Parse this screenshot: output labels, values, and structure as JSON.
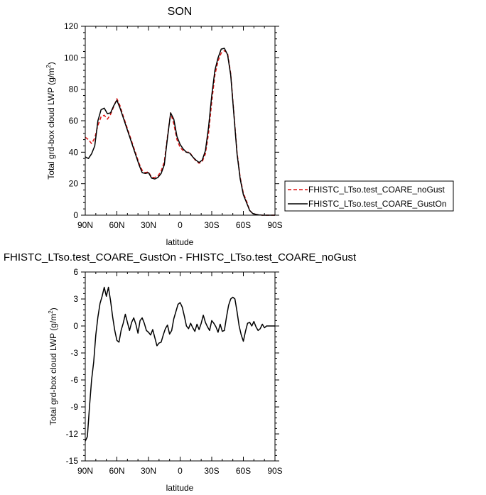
{
  "chart_data": [
    {
      "type": "line",
      "title": "SON",
      "xlabel": "latitude",
      "ylabel": "Total grd-box cloud LWP (g/m",
      "ylabel_sup": "2",
      "ylabel_close": ")",
      "xlim": [
        90,
        -90
      ],
      "ylim": [
        0,
        120
      ],
      "xticks": [
        90,
        60,
        30,
        0,
        -30,
        -60,
        -90
      ],
      "xtick_labels": [
        "90N",
        "60N",
        "30N",
        "0",
        "30S",
        "60S",
        "90S"
      ],
      "yticks": [
        0,
        20,
        40,
        60,
        80,
        100,
        120
      ],
      "ytick_labels": [
        "0",
        "20",
        "40",
        "60",
        "80",
        "100",
        "120"
      ],
      "legend": {
        "placement": "right",
        "border": true
      },
      "x": [
        90,
        87,
        84,
        81,
        78,
        75,
        72,
        69,
        66,
        63,
        60,
        57,
        54,
        51,
        48,
        45,
        42,
        39,
        36,
        33,
        30,
        27,
        24,
        21,
        18,
        15,
        12,
        9,
        6,
        3,
        0,
        -3,
        -6,
        -9,
        -12,
        -15,
        -18,
        -21,
        -24,
        -27,
        -30,
        -33,
        -36,
        -39,
        -42,
        -45,
        -48,
        -51,
        -54,
        -57,
        -60,
        -63,
        -66,
        -69,
        -72,
        -75,
        -78,
        -81,
        -84,
        -87,
        -90
      ],
      "series": [
        {
          "name": "FHISTC_LTso.test_COARE_noGust",
          "color": "#dd1111",
          "dash": "dashed",
          "values": [
            49.5,
            48,
            45.5,
            49,
            57,
            62.5,
            63.5,
            61,
            64,
            69,
            74,
            69.5,
            63,
            57,
            51,
            45,
            39,
            33,
            28.5,
            27,
            27.5,
            24,
            24,
            25,
            28,
            34,
            50,
            65,
            58,
            48,
            43,
            41,
            40,
            40,
            37,
            34.5,
            33,
            34,
            39,
            52,
            72,
            89,
            98,
            103,
            104.5,
            103,
            90,
            65,
            40,
            24,
            14,
            9,
            3,
            1,
            0.5,
            0.2,
            0,
            0,
            0,
            0,
            0
          ]
        },
        {
          "name": "FHISTC_LTso.test_COARE_GustOn",
          "color": "#000000",
          "dash": "solid",
          "values": [
            37,
            36,
            39,
            44,
            60,
            67,
            68,
            64.5,
            65,
            69.5,
            73,
            68,
            62,
            56,
            50,
            44,
            38,
            32,
            27,
            26.5,
            27,
            23.5,
            23,
            24,
            26.5,
            32,
            49,
            65,
            61,
            50,
            45,
            42,
            40,
            39.5,
            37,
            35,
            33.5,
            35,
            41,
            56,
            76,
            92,
            100,
            105.5,
            106,
            102,
            89,
            64,
            39,
            23,
            13,
            8,
            3,
            1,
            0.5,
            0.2,
            0,
            0,
            0,
            0,
            0
          ]
        }
      ]
    },
    {
      "type": "line",
      "title": "FHISTC_LTso.test_COARE_GustOn - FHISTC_LTso.test_COARE_noGust",
      "xlabel": "latitude",
      "ylabel": "Total grd-box cloud LWP (g/m",
      "ylabel_sup": "2",
      "ylabel_close": ")",
      "xlim": [
        90,
        -90
      ],
      "ylim": [
        -15,
        6
      ],
      "xticks": [
        90,
        60,
        30,
        0,
        -30,
        -60,
        -90
      ],
      "xtick_labels": [
        "90N",
        "60N",
        "30N",
        "0",
        "30S",
        "60S",
        "90S"
      ],
      "yticks": [
        -15,
        -12,
        -9,
        -6,
        -3,
        0,
        3,
        6
      ],
      "ytick_labels": [
        "-15",
        "-12",
        "-9",
        "-6",
        "-3",
        "0",
        "3",
        "6"
      ],
      "x": [
        90,
        88,
        86,
        84,
        82,
        80,
        78,
        76,
        74,
        72,
        70,
        68,
        66,
        64,
        62,
        60,
        58,
        56,
        54,
        52,
        50,
        48,
        46,
        44,
        42,
        40,
        38,
        36,
        34,
        32,
        30,
        28,
        26,
        24,
        22,
        20,
        18,
        16,
        14,
        12,
        10,
        8,
        6,
        4,
        2,
        0,
        -2,
        -4,
        -6,
        -8,
        -10,
        -12,
        -14,
        -16,
        -18,
        -20,
        -22,
        -24,
        -26,
        -28,
        -30,
        -32,
        -34,
        -36,
        -38,
        -40,
        -42,
        -44,
        -46,
        -48,
        -50,
        -52,
        -54,
        -56,
        -58,
        -60,
        -62,
        -64,
        -66,
        -68,
        -70,
        -72,
        -74,
        -76,
        -78,
        -80,
        -82,
        -84,
        -86,
        -88,
        -90
      ],
      "series": [
        {
          "name": "",
          "color": "#000000",
          "dash": "solid",
          "values": [
            -12.8,
            -12.3,
            -9,
            -6,
            -4,
            -1,
            1,
            2.5,
            3.3,
            4.3,
            3.3,
            4.3,
            2.8,
            1,
            -0.5,
            -1.6,
            -1.8,
            -0.5,
            0.3,
            1.3,
            0.4,
            -0.5,
            0.4,
            0.9,
            0.2,
            -0.8,
            0.6,
            0.9,
            0.3,
            -0.5,
            -0.7,
            -1,
            -0.4,
            -1.3,
            -2.2,
            -1.9,
            -1.8,
            -1,
            -0.3,
            0.1,
            -0.9,
            -0.5,
            0.8,
            1.6,
            2.4,
            2.6,
            2.1,
            1.1,
            0,
            -0.3,
            0.3,
            -0.2,
            -0.6,
            0.2,
            -0.4,
            0.3,
            1.2,
            0.4,
            -0.1,
            -0.5,
            0.6,
            0.3,
            -0.1,
            -0.7,
            0.2,
            -0.6,
            -0.5,
            1,
            2.3,
            3,
            3.2,
            3,
            1.6,
            0,
            -1,
            -1.7,
            -0.6,
            0.3,
            0.4,
            0,
            0.5,
            -0.1,
            -0.5,
            -0.3,
            0.2,
            -0.2,
            0,
            0,
            0,
            0,
            0
          ]
        }
      ]
    }
  ]
}
